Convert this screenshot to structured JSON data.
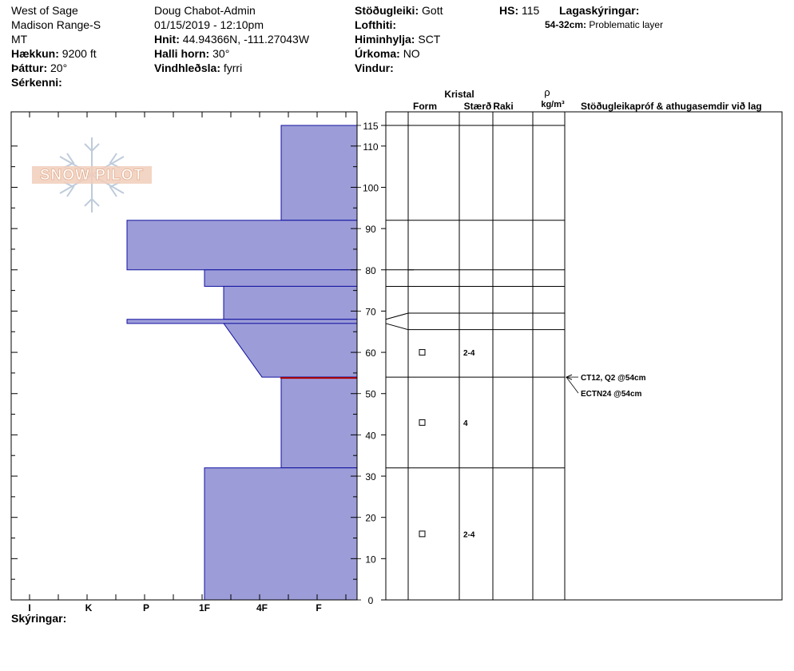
{
  "header": {
    "location": "West of Sage",
    "range": "Madison Range-S",
    "state": "MT",
    "elevation_label": "Hækkun:",
    "elevation_value": "9200 ft",
    "aspect_label": "Þáttur:",
    "aspect_value": "20°",
    "specifics_label": "Sérkenni:",
    "observer": "Doug Chabot-Admin",
    "datetime": "01/15/2019 - 12:10pm",
    "coords_label": "Hnit:",
    "coords_value": "44.94366N, -111.27043W",
    "slope_label": "Halli horn:",
    "slope_value": "30°",
    "wind_loading_label": "Vindhleðsla:",
    "wind_loading_value": "fyrri",
    "stability_label": "Stöðugleiki:",
    "stability_value": "Gott",
    "air_temp_label": "Lofthiti:",
    "sky_label": "Himinhylja:",
    "sky_value": "SCT",
    "precip_label": "Úrkoma:",
    "precip_value": "NO",
    "wind_label": "Vindur:",
    "hs_label": "HS:",
    "hs_value": "115",
    "layer_notes_label": "Lagaskýringar:",
    "layer_note_range": "54-32cm:",
    "layer_note_text": "Problematic layer"
  },
  "logo_text": "SNOW PILOT",
  "footer": {
    "notes_label": "Skýringar:"
  },
  "table_headers": {
    "crystal": "Kristal",
    "form": "Form",
    "size": "Stærð",
    "moisture": "Raki",
    "rho": "ρ",
    "density_unit": "kg/m³",
    "tests": "Stöðugleikapróf & athugasemdir við lag"
  },
  "colors": {
    "layer_fill": "#9c9cd8",
    "layer_stroke": "#1010a0",
    "problem_line": "#b00000",
    "grid": "#000000"
  },
  "chart_data": {
    "type": "bar",
    "x_axis": {
      "hardness_ticks": [
        "I",
        "K",
        "P",
        "1F",
        "4F",
        "F"
      ]
    },
    "y_axis": {
      "range": [
        0,
        115
      ],
      "ticks": [
        0,
        10,
        20,
        30,
        40,
        50,
        60,
        70,
        80,
        90,
        100,
        110,
        115
      ],
      "unit": "cm"
    },
    "layers": [
      {
        "top": 115,
        "bottom": 92,
        "hardness": "4F+"
      },
      {
        "top": 92,
        "bottom": 80,
        "hardness": "P-"
      },
      {
        "top": 80,
        "bottom": 76,
        "hardness": "1F"
      },
      {
        "top": 76,
        "bottom": 68,
        "hardness": "1F+"
      },
      {
        "top": 68,
        "bottom": 67,
        "hardness": "P-"
      },
      {
        "top": 67,
        "bottom": 54,
        "hardness_top": "1F+",
        "hardness_bottom": "4F"
      },
      {
        "top": 54,
        "bottom": 32,
        "hardness": "4F+"
      },
      {
        "top": 32,
        "bottom": 0,
        "hardness": "1F"
      }
    ],
    "problematic_layer_depth": 54,
    "grains": [
      {
        "height": 60,
        "form": "square",
        "size": "2-4"
      },
      {
        "height": 43,
        "form": "square",
        "size": "4"
      },
      {
        "height": 16,
        "form": "square",
        "size": "2-4"
      }
    ],
    "tests": [
      {
        "text": "CT12, Q2 @54cm"
      },
      {
        "text": "ECTN24 @54cm"
      }
    ]
  }
}
